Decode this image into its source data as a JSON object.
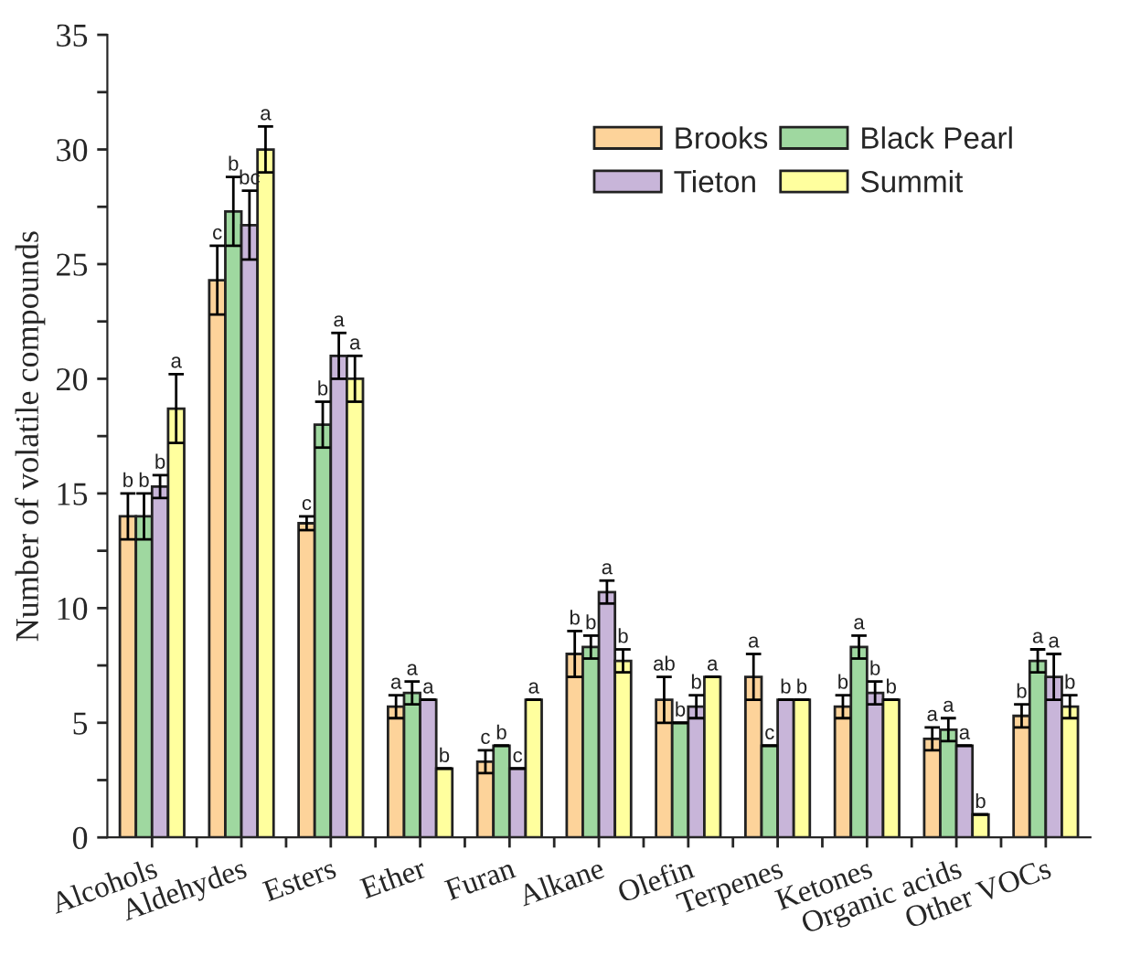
{
  "chart_data": {
    "type": "bar",
    "ylabel": "Number of volatile compounds",
    "categories": [
      "Alcohols",
      "Aldehydes",
      "Esters",
      "Ether",
      "Furan",
      "Alkane",
      "Olefin",
      "Terpenes",
      "Ketones",
      "Organic acids",
      "Other VOCs"
    ],
    "series": [
      {
        "name": "Brooks",
        "color": "#fdd39a",
        "values": [
          14,
          24.3,
          13.7,
          5.7,
          3.3,
          8,
          6,
          7,
          5.7,
          4.3,
          5.3
        ],
        "errors": [
          1,
          1.5,
          0.3,
          0.5,
          0.5,
          1,
          1,
          1,
          0.5,
          0.5,
          0.5
        ],
        "value_labels": [
          "b",
          "c",
          "c",
          "a",
          "c",
          "b",
          "ab",
          "a",
          "b",
          "a",
          "b"
        ]
      },
      {
        "name": "Black Pearl",
        "color": "#9fd8a0",
        "values": [
          14,
          27.3,
          18,
          6.3,
          4,
          8.3,
          5,
          4,
          8.3,
          4.7,
          7.7
        ],
        "errors": [
          1,
          1.5,
          1,
          0.5,
          0,
          0.5,
          0,
          0,
          0.5,
          0.5,
          0.5
        ],
        "value_labels": [
          "b",
          "b",
          "b",
          "a",
          "b",
          "b",
          "b",
          "c",
          "a",
          "a",
          "a"
        ]
      },
      {
        "name": "Tieton",
        "color": "#c8b5d9",
        "values": [
          15.3,
          26.7,
          21,
          6,
          3,
          10.7,
          5.7,
          6,
          6.3,
          4,
          7
        ],
        "errors": [
          0.5,
          1.5,
          1,
          0,
          0,
          0.5,
          0.5,
          0,
          0.5,
          0,
          1
        ],
        "value_labels": [
          "b",
          "bc",
          "a",
          "a",
          "c",
          "a",
          "b",
          "b",
          "b",
          "a",
          "a"
        ]
      },
      {
        "name": "Summit",
        "color": "#ffff9e",
        "values": [
          18.7,
          30,
          20,
          3,
          6,
          7.7,
          7,
          6,
          6,
          1,
          5.7
        ],
        "errors": [
          1.5,
          1,
          1,
          0,
          0,
          0.5,
          0,
          0,
          0,
          0,
          0.5
        ],
        "value_labels": [
          "a",
          "a",
          "a",
          "b",
          "a",
          "b",
          "a",
          "b",
          "b",
          "b",
          "b"
        ]
      }
    ],
    "ylim": [
      0,
      35
    ],
    "yticks": [
      0,
      5,
      10,
      15,
      20,
      25,
      30,
      35
    ],
    "legend": "top right",
    "grid": false
  }
}
